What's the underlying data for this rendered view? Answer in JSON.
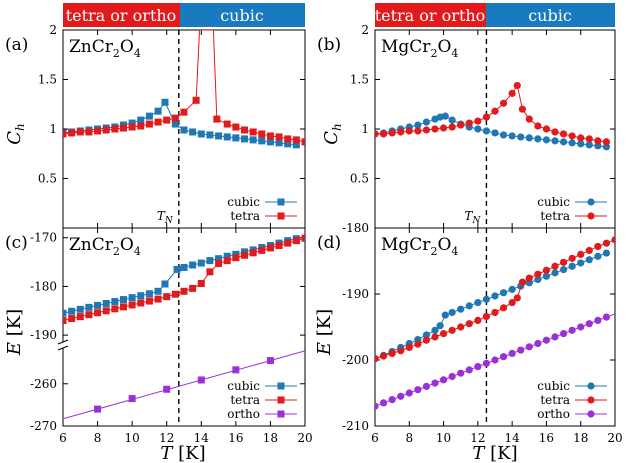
{
  "colors": {
    "cubic": "#1f77b4",
    "tetra": "#e31a1c",
    "ortho": "#9b30d9",
    "banner_red": "#e31a1c",
    "banner_blue": "#1a7abf"
  },
  "banners": [
    {
      "left_label": "tetra or ortho",
      "right_label": "cubic"
    },
    {
      "left_label": "tetra or ortho",
      "right_label": "cubic"
    }
  ],
  "panels": [
    {
      "tag": "(a)",
      "compound": "ZnCr",
      "sub1": "2",
      "mid": "O",
      "sub2": "4",
      "ylabel_main": "C",
      "ylabel_sub": "h",
      "marker": "square",
      "tn_label": "T",
      "tn_sub": "N"
    },
    {
      "tag": "(b)",
      "compound": "MgCr",
      "sub1": "2",
      "mid": "O",
      "sub2": "4",
      "ylabel_main": "C",
      "ylabel_sub": "h",
      "marker": "circle",
      "tn_label": "T",
      "tn_sub": "N"
    },
    {
      "tag": "(c)",
      "compound": "ZnCr",
      "sub1": "2",
      "mid": "O",
      "sub2": "4",
      "ylabel_main": "E",
      "ylabel_unit": " [K]",
      "marker": "square"
    },
    {
      "tag": "(d)",
      "compound": "MgCr",
      "sub1": "2",
      "mid": "O",
      "sub2": "4",
      "ylabel_main": "E",
      "ylabel_unit": " [K]",
      "marker": "circle"
    }
  ],
  "x_axis": {
    "label_main": "T",
    "label_unit": " [K]"
  },
  "chart_data": [
    {
      "type": "line",
      "panel": "a",
      "xlim": [
        6,
        20
      ],
      "ylim": [
        0,
        2
      ],
      "yticks": [
        "0.5",
        "1",
        "1.5",
        "2"
      ],
      "yticks_values": [
        0.5,
        1,
        1.5,
        2
      ],
      "tn": 12.7,
      "legend": [
        "cubic",
        "tetra"
      ],
      "series": [
        {
          "name": "cubic",
          "x": [
            6,
            6.5,
            7,
            7.5,
            8,
            8.5,
            9,
            9.5,
            10,
            10.5,
            11,
            11.5,
            11.9,
            12.5,
            13,
            13.5,
            14,
            14.5,
            15,
            15.5,
            16,
            16.5,
            17,
            17.5,
            18,
            18.5,
            19,
            19.5
          ],
          "y": [
            0.96,
            0.97,
            0.98,
            0.99,
            1.0,
            1.01,
            1.02,
            1.04,
            1.06,
            1.09,
            1.13,
            1.18,
            1.27,
            1.05,
            0.99,
            0.97,
            0.95,
            0.94,
            0.93,
            0.92,
            0.91,
            0.9,
            0.89,
            0.88,
            0.87,
            0.86,
            0.85,
            0.84
          ]
        },
        {
          "name": "tetra",
          "x": [
            6,
            6.5,
            7,
            7.5,
            8,
            8.5,
            9,
            9.5,
            10,
            10.5,
            11,
            11.5,
            12,
            12.5,
            13,
            13.7,
            13.9,
            14.7,
            14.9,
            15.5,
            16,
            16.5,
            17,
            17.5,
            18,
            18.5,
            19,
            19.5,
            20
          ],
          "y": [
            0.95,
            0.96,
            0.97,
            0.97,
            0.98,
            0.99,
            1.0,
            1.01,
            1.02,
            1.03,
            1.05,
            1.07,
            1.09,
            1.11,
            1.17,
            1.29,
            2.0,
            2.0,
            1.1,
            1.05,
            1.02,
            0.99,
            0.97,
            0.95,
            0.93,
            0.92,
            0.9,
            0.89,
            0.87
          ]
        }
      ]
    },
    {
      "type": "line",
      "panel": "b",
      "xlim": [
        6,
        20
      ],
      "ylim": [
        0,
        2
      ],
      "yticks": [
        "0.5",
        "1",
        "1.5",
        "2"
      ],
      "yticks_values": [
        0.5,
        1,
        1.5,
        2
      ],
      "tn": 12.5,
      "legend": [
        "cubic",
        "tetra"
      ],
      "series": [
        {
          "name": "cubic",
          "x": [
            6,
            6.5,
            7,
            7.5,
            8,
            8.5,
            9,
            9.5,
            9.8,
            10.1,
            10.5,
            11,
            11.5,
            12,
            12.5,
            13,
            13.5,
            14,
            14.5,
            15,
            15.5,
            16,
            16.5,
            17,
            17.5,
            18,
            18.5,
            19,
            19.5
          ],
          "y": [
            0.95,
            0.96,
            0.98,
            1.0,
            1.02,
            1.04,
            1.07,
            1.1,
            1.12,
            1.13,
            1.09,
            1.05,
            1.02,
            1.0,
            0.98,
            0.96,
            0.94,
            0.93,
            0.92,
            0.91,
            0.9,
            0.89,
            0.88,
            0.87,
            0.86,
            0.85,
            0.84,
            0.83,
            0.82
          ]
        },
        {
          "name": "tetra",
          "x": [
            6,
            6.5,
            7,
            7.5,
            8,
            8.5,
            9,
            9.5,
            10,
            10.5,
            11,
            11.5,
            12,
            12.5,
            13,
            13.5,
            14,
            14.3,
            14.6,
            15,
            15.5,
            16,
            16.5,
            17,
            17.5,
            18,
            18.5,
            19,
            19.5
          ],
          "y": [
            0.95,
            0.95,
            0.96,
            0.97,
            0.98,
            0.98,
            0.99,
            1.0,
            1.01,
            1.02,
            1.04,
            1.06,
            1.08,
            1.12,
            1.18,
            1.26,
            1.36,
            1.44,
            1.2,
            1.1,
            1.03,
            1.0,
            0.97,
            0.95,
            0.93,
            0.91,
            0.9,
            0.88,
            0.87
          ]
        }
      ]
    },
    {
      "type": "line",
      "panel": "c",
      "xlim": [
        6,
        20
      ],
      "broken_axis": true,
      "upper_ylim": [
        -191,
        -168
      ],
      "lower_ylim": [
        -270,
        -252
      ],
      "yticks_upper": [
        "-190",
        "-180",
        "-170"
      ],
      "yticks_upper_values": [
        -190,
        -180,
        -170
      ],
      "yticks_lower": [
        "-270",
        "-260"
      ],
      "yticks_lower_values": [
        -270,
        -260
      ],
      "tn": 12.7,
      "legend": [
        "cubic",
        "tetra",
        "ortho"
      ],
      "series": [
        {
          "name": "cubic",
          "x": [
            6,
            6.5,
            7,
            7.5,
            8,
            8.5,
            9,
            9.5,
            10,
            10.5,
            11,
            11.5,
            11.9,
            12.6,
            13,
            13.5,
            14,
            14.5,
            15,
            15.5,
            16,
            16.5,
            17,
            17.5,
            18,
            18.5,
            19,
            19.5
          ],
          "y": [
            -185.5,
            -185.1,
            -184.7,
            -184.3,
            -183.9,
            -183.5,
            -183.1,
            -182.7,
            -182.3,
            -181.9,
            -181.5,
            -181.0,
            -179.5,
            -176.5,
            -176.1,
            -175.6,
            -175.2,
            -174.7,
            -174.3,
            -173.8,
            -173.4,
            -172.9,
            -172.5,
            -172.0,
            -171.6,
            -171.1,
            -170.6,
            -170.2
          ]
        },
        {
          "name": "tetra",
          "x": [
            6,
            6.5,
            7,
            7.5,
            8,
            8.5,
            9,
            9.5,
            10,
            10.5,
            11,
            11.5,
            12,
            12.5,
            13,
            13.5,
            14,
            14.5,
            15,
            15.5,
            16,
            16.5,
            17,
            17.5,
            18,
            18.5,
            19,
            19.5,
            20
          ],
          "y": [
            -187.0,
            -186.6,
            -186.2,
            -185.8,
            -185.4,
            -185.0,
            -184.6,
            -184.2,
            -183.8,
            -183.4,
            -183.0,
            -182.6,
            -182.1,
            -181.6,
            -181.0,
            -180.4,
            -179.4,
            -177.0,
            -175.3,
            -174.7,
            -174.1,
            -173.6,
            -173.1,
            -172.6,
            -172.1,
            -171.6,
            -171.1,
            -170.6,
            -170.1
          ]
        },
        {
          "name": "ortho",
          "x": [
            8,
            10,
            12,
            14,
            16,
            18
          ],
          "y": [
            -266.0,
            -263.5,
            -261.3,
            -259.1,
            -256.7,
            -254.5
          ],
          "line_from": 6,
          "line_to": 20
        }
      ]
    },
    {
      "type": "line",
      "panel": "d",
      "xlim": [
        6,
        20
      ],
      "ylim": [
        -210,
        -180
      ],
      "yticks": [
        "-210",
        "-200",
        "-190",
        "-180"
      ],
      "yticks_values": [
        -210,
        -200,
        -190,
        -180
      ],
      "tn": 12.5,
      "legend": [
        "cubic",
        "tetra",
        "ortho"
      ],
      "series": [
        {
          "name": "cubic",
          "x": [
            6,
            6.5,
            7,
            7.5,
            8,
            8.5,
            9,
            9.5,
            9.8,
            10.1,
            10.5,
            11,
            11.5,
            12,
            12.5,
            13,
            13.5,
            14,
            14.5,
            15,
            15.5,
            16,
            16.5,
            17,
            17.5,
            18,
            18.5,
            19,
            19.5
          ],
          "y": [
            -199.8,
            -199.3,
            -198.7,
            -198.1,
            -197.5,
            -196.9,
            -196.2,
            -195.5,
            -194.8,
            -193.2,
            -192.8,
            -192.3,
            -191.8,
            -191.3,
            -190.8,
            -190.3,
            -189.8,
            -189.3,
            -188.8,
            -188.3,
            -187.8,
            -187.3,
            -186.8,
            -186.3,
            -185.8,
            -185.3,
            -184.8,
            -184.3,
            -183.8
          ]
        },
        {
          "name": "tetra",
          "x": [
            6,
            6.5,
            7,
            7.5,
            8,
            8.5,
            9,
            9.5,
            10,
            10.5,
            11,
            11.5,
            12,
            12.5,
            13,
            13.5,
            14,
            14.3,
            14.6,
            15,
            15.5,
            16,
            16.5,
            17,
            17.5,
            18,
            18.5,
            19,
            19.5,
            20
          ],
          "y": [
            -199.8,
            -199.4,
            -199.0,
            -198.6,
            -198.1,
            -197.6,
            -197.0,
            -196.5,
            -196.0,
            -195.5,
            -195.0,
            -194.5,
            -194.0,
            -193.4,
            -192.8,
            -192.1,
            -191.3,
            -190.6,
            -188.2,
            -187.6,
            -187.0,
            -186.4,
            -185.8,
            -185.2,
            -184.6,
            -184.0,
            -183.4,
            -182.8,
            -182.3,
            -181.8
          ]
        },
        {
          "name": "ortho",
          "x": [
            6,
            6.5,
            7,
            7.5,
            8,
            8.5,
            9,
            9.5,
            10,
            10.5,
            11,
            11.5,
            12,
            12.5,
            13,
            13.5,
            14,
            14.5,
            15,
            15.5,
            16,
            16.5,
            17,
            17.5,
            18,
            18.5,
            19,
            19.5
          ],
          "y": [
            -207.0,
            -206.5,
            -206.0,
            -205.5,
            -205.0,
            -204.5,
            -204.0,
            -203.5,
            -203.0,
            -202.5,
            -202.0,
            -201.5,
            -201.0,
            -200.5,
            -200.0,
            -199.5,
            -199.0,
            -198.5,
            -198.0,
            -197.5,
            -197.0,
            -196.5,
            -196.0,
            -195.5,
            -195.0,
            -194.5,
            -194.0,
            -193.5
          ],
          "line_from": 6,
          "line_to": 20
        }
      ]
    }
  ],
  "xticks": [
    "6",
    "8",
    "10",
    "12",
    "14",
    "16",
    "18",
    "20"
  ],
  "xticks_values": [
    6,
    8,
    10,
    12,
    14,
    16,
    18,
    20
  ]
}
